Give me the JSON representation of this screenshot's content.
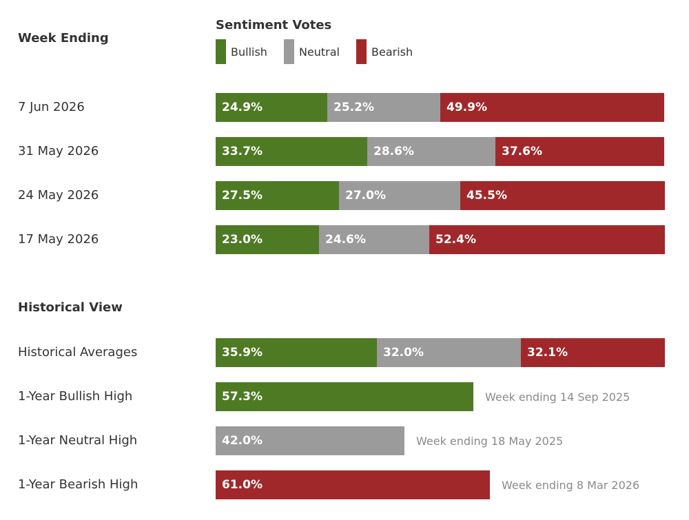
{
  "colors": {
    "bullish": "#4e7a24",
    "neutral": "#9b9b9b",
    "bearish": "#a1282a"
  },
  "headers": {
    "week_ending": "Week Ending",
    "historical_view": "Historical View"
  },
  "legend": {
    "title": "Sentiment Votes",
    "items": [
      "Bullish",
      "Neutral",
      "Bearish"
    ]
  },
  "chart_data": [
    {
      "type": "bar",
      "stacked": true,
      "orientation": "horizontal",
      "title": "Sentiment Votes",
      "categories": [
        "7 Jun 2026",
        "31 May 2026",
        "24 May 2026",
        "17 May 2026"
      ],
      "series": [
        {
          "name": "Bullish",
          "values": [
            24.9,
            33.7,
            27.5,
            23.0
          ]
        },
        {
          "name": "Neutral",
          "values": [
            25.2,
            28.6,
            27.0,
            24.6
          ]
        },
        {
          "name": "Bearish",
          "values": [
            49.9,
            37.6,
            45.5,
            52.4
          ]
        }
      ],
      "labels": [
        [
          "24.9%",
          "25.2%",
          "49.9%"
        ],
        [
          "33.7%",
          "28.6%",
          "37.6%"
        ],
        [
          "27.5%",
          "27.0%",
          "45.5%"
        ],
        [
          "23.0%",
          "24.6%",
          "52.4%"
        ]
      ],
      "legend": "top",
      "xlim": [
        0,
        100
      ]
    },
    {
      "type": "bar",
      "orientation": "horizontal",
      "title": "Historical View",
      "rows": [
        {
          "label": "Historical Averages",
          "stacked": true,
          "values": [
            35.9,
            32.0,
            32.1
          ],
          "labels": [
            "35.9%",
            "32.0%",
            "32.1%"
          ],
          "series": [
            "Bullish",
            "Neutral",
            "Bearish"
          ],
          "note": ""
        },
        {
          "label": "1-Year Bullish High",
          "stacked": false,
          "values": [
            57.3
          ],
          "labels": [
            "57.3%"
          ],
          "series": [
            "Bullish"
          ],
          "note": "Week ending 14 Sep 2025"
        },
        {
          "label": "1-Year Neutral High",
          "stacked": false,
          "values": [
            42.0
          ],
          "labels": [
            "42.0%"
          ],
          "series": [
            "Neutral"
          ],
          "note": "Week ending 18 May 2025"
        },
        {
          "label": "1-Year Bearish High",
          "stacked": false,
          "values": [
            61.0
          ],
          "labels": [
            "61.0%"
          ],
          "series": [
            "Bearish"
          ],
          "note": "Week ending 8 Mar 2026"
        }
      ],
      "xlim": [
        0,
        100
      ]
    }
  ]
}
